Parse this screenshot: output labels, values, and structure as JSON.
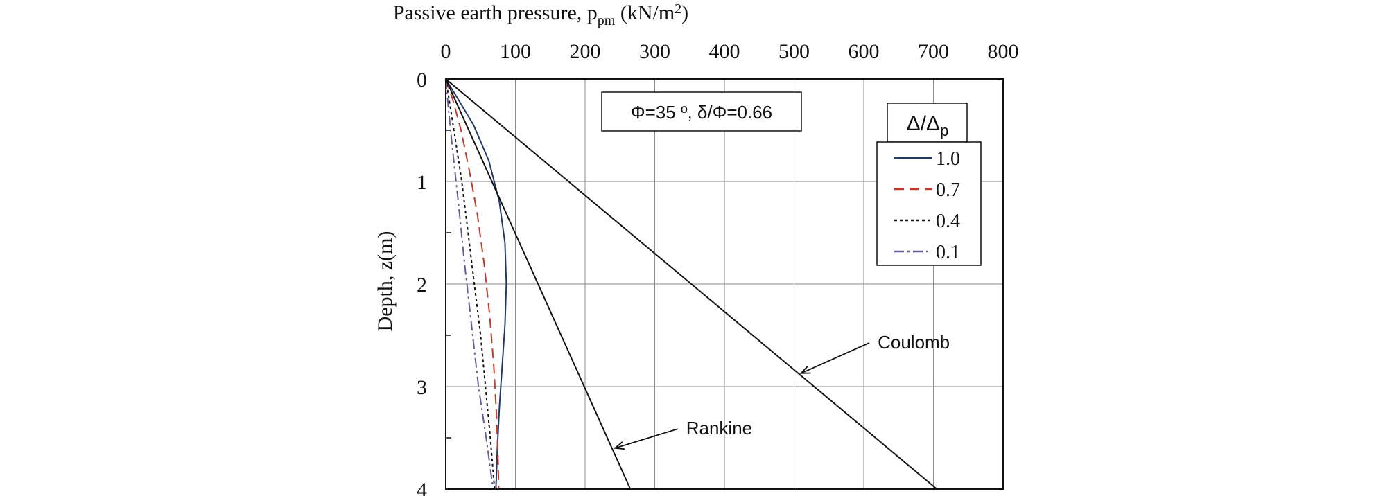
{
  "chart_data": {
    "type": "line",
    "title_parts": {
      "main": "Passive earth pressure, p",
      "sub": "pm",
      "units_open": " (kN/m",
      "sup": "2",
      "units_close": ")"
    },
    "ylabel": "Depth, z(m)",
    "xlim": [
      0,
      800
    ],
    "ylim": [
      0,
      4
    ],
    "xticks": [
      0,
      100,
      200,
      300,
      400,
      500,
      600,
      700,
      800
    ],
    "yticks": [
      0,
      1,
      2,
      3,
      4
    ],
    "x_axis_position": "top",
    "y_axis_inverted": true,
    "grid": true,
    "annotation_box": "Φ=35 º, δ/Φ=0.66",
    "legend": {
      "title_main": "Δ/Δ",
      "title_sub": "p",
      "placement": "top-right"
    },
    "series": [
      {
        "name": "1.0",
        "color": "#1f3a68",
        "dash": "solid",
        "points": [
          [
            0,
            0
          ],
          [
            18,
            0.2
          ],
          [
            40,
            0.45
          ],
          [
            62,
            0.8
          ],
          [
            77,
            1.2
          ],
          [
            85,
            1.6
          ],
          [
            87,
            2.0
          ],
          [
            85,
            2.4
          ],
          [
            81,
            2.8
          ],
          [
            77,
            3.2
          ],
          [
            74,
            3.6
          ],
          [
            72,
            4.0
          ]
        ]
      },
      {
        "name": "0.7",
        "color": "#c0392b",
        "dash": "dashed",
        "points": [
          [
            0,
            0
          ],
          [
            10,
            0.2
          ],
          [
            22,
            0.5
          ],
          [
            34,
            0.9
          ],
          [
            45,
            1.3
          ],
          [
            55,
            1.8
          ],
          [
            63,
            2.3
          ],
          [
            69,
            2.8
          ],
          [
            73,
            3.3
          ],
          [
            75,
            3.7
          ],
          [
            76,
            4.0
          ]
        ]
      },
      {
        "name": "0.4",
        "color": "#111111",
        "dash": "dotted",
        "points": [
          [
            0,
            0
          ],
          [
            6,
            0.25
          ],
          [
            14,
            0.6
          ],
          [
            23,
            1.0
          ],
          [
            32,
            1.5
          ],
          [
            41,
            2.0
          ],
          [
            50,
            2.5
          ],
          [
            57,
            3.0
          ],
          [
            64,
            3.5
          ],
          [
            70,
            4.0
          ]
        ]
      },
      {
        "name": "0.1",
        "color": "#6b5b95",
        "dash": "dashdot",
        "points": [
          [
            0,
            0
          ],
          [
            4,
            0.3
          ],
          [
            10,
            0.7
          ],
          [
            18,
            1.2
          ],
          [
            27,
            1.8
          ],
          [
            37,
            2.4
          ],
          [
            47,
            3.0
          ],
          [
            58,
            3.5
          ],
          [
            68,
            4.0
          ]
        ]
      },
      {
        "name": "Rankine",
        "color": "#111111",
        "dash": "solid",
        "points": [
          [
            0,
            0
          ],
          [
            265,
            4.0
          ]
        ]
      },
      {
        "name": "Coulomb",
        "color": "#111111",
        "dash": "solid",
        "points": [
          [
            0,
            0
          ],
          [
            705,
            4.0
          ]
        ]
      }
    ],
    "annotations": [
      {
        "text": "Coulomb",
        "target": [
          510,
          2.87
        ],
        "label_at": [
          620,
          2.56
        ]
      },
      {
        "text": "Rankine",
        "target": [
          243,
          3.6
        ],
        "label_at": [
          345,
          3.4
        ]
      }
    ]
  }
}
